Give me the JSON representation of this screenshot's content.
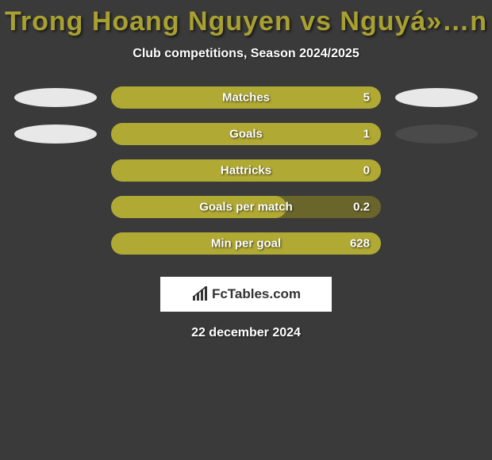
{
  "title": "Trong Hoang Nguyen vs Nguyá»…n",
  "title_color": "#a8a030",
  "subtitle": "Club competitions, Season 2024/2025",
  "background_color": "#3a3a3a",
  "bar_track_color": "#6a652a",
  "rows": [
    {
      "label": "Matches",
      "value": "5",
      "fill_pct": 100,
      "fill_color": "#b0a933",
      "left_ellipse": "#e8e8e8",
      "right_ellipse": "#e8e8e8"
    },
    {
      "label": "Goals",
      "value": "1",
      "fill_pct": 100,
      "fill_color": "#b0a933",
      "left_ellipse": "#e8e8e8",
      "right_ellipse": "#4a4a4a"
    },
    {
      "label": "Hattricks",
      "value": "0",
      "fill_pct": 100,
      "fill_color": "#b0a933",
      "left_ellipse": null,
      "right_ellipse": null
    },
    {
      "label": "Goals per match",
      "value": "0.2",
      "fill_pct": 65,
      "fill_color": "#b0a933",
      "left_ellipse": null,
      "right_ellipse": null
    },
    {
      "label": "Min per goal",
      "value": "628",
      "fill_pct": 100,
      "fill_color": "#b0a933",
      "left_ellipse": null,
      "right_ellipse": null
    }
  ],
  "logo_text": "FcTables.com",
  "date": "22 december 2024"
}
